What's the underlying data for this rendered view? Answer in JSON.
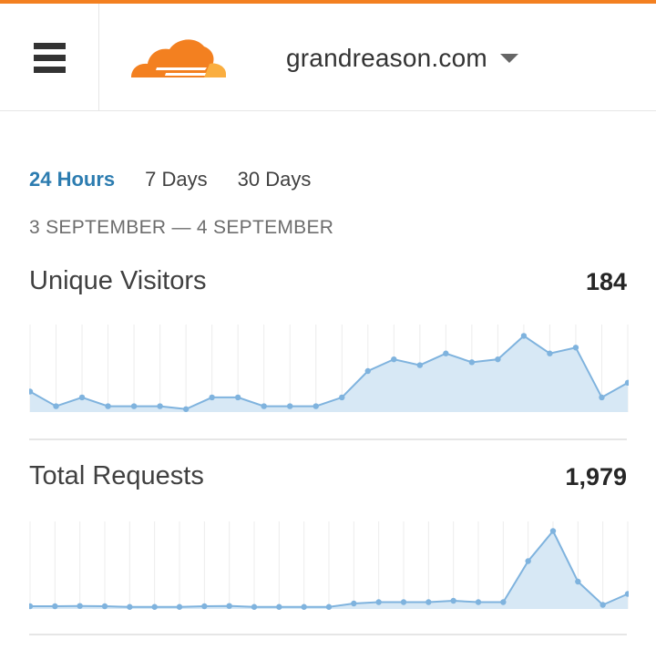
{
  "brand": {
    "accent": "#f38020",
    "logo_name": "cloudflare-logo"
  },
  "header": {
    "domain": "grandreason.com",
    "menu_icon": "hamburger-icon",
    "dropdown_icon": "caret-down-icon"
  },
  "tabs": [
    {
      "label": "24 Hours",
      "active": true
    },
    {
      "label": "7 Days",
      "active": false
    },
    {
      "label": "30 Days",
      "active": false
    }
  ],
  "date_range": "3 SEPTEMBER — 4 SEPTEMBER",
  "metrics": [
    {
      "label": "Unique Visitors",
      "value": "184"
    },
    {
      "label": "Total Requests",
      "value": "1,979"
    }
  ],
  "chart_data": [
    {
      "type": "area",
      "series": [
        {
          "values": [
            7,
            2,
            5,
            2,
            2,
            2,
            1,
            5,
            5,
            2,
            2,
            2,
            5,
            14,
            18,
            16,
            20,
            17,
            18,
            26,
            20,
            22,
            5,
            10
          ]
        }
      ],
      "ylim": [
        0,
        28
      ],
      "grid": true,
      "color": "#7fb3de",
      "fill": "#d7e8f5"
    },
    {
      "type": "area",
      "series": [
        {
          "values": [
            20,
            20,
            22,
            20,
            15,
            15,
            15,
            20,
            22,
            15,
            15,
            15,
            15,
            40,
            50,
            50,
            50,
            60,
            50,
            50,
            350,
            570,
            200,
            30,
            110
          ]
        }
      ],
      "ylim": [
        0,
        600
      ],
      "grid": true,
      "color": "#7fb3de",
      "fill": "#d7e8f5"
    }
  ]
}
